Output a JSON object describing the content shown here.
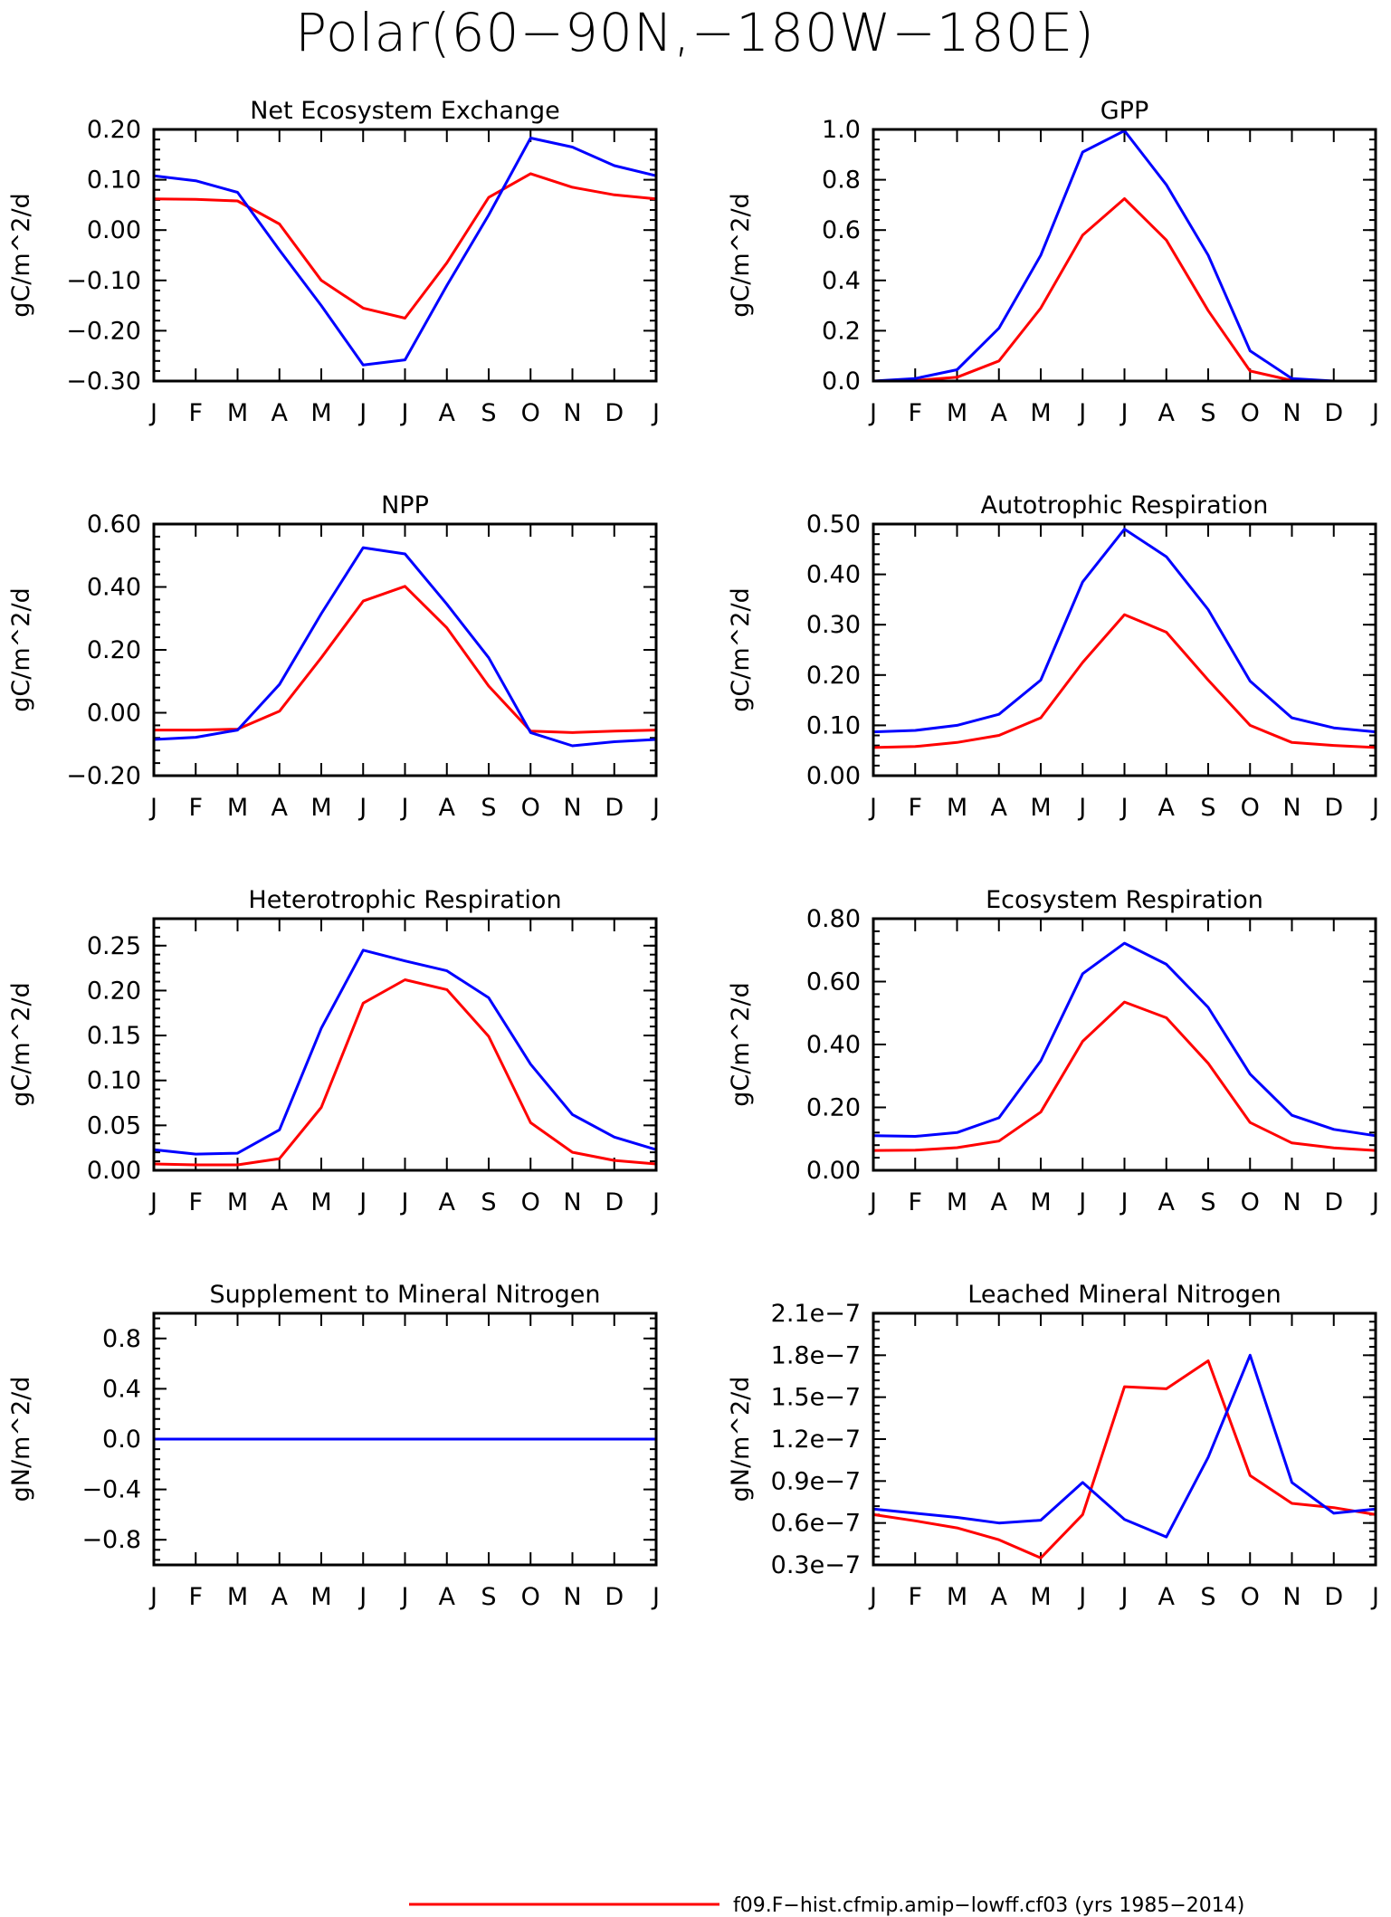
{
  "title": "Polar(60−90N,−180W−180E)",
  "colors": {
    "red": "#ff0000",
    "blue": "#0000ff"
  },
  "legend": {
    "label": "f09.F−hist.cfmip.amip−lowff.cf03 (yrs 1985−2014)",
    "color": "#ff0000"
  },
  "chart_data": [
    {
      "type": "line",
      "title": "Net Ecosystem Exchange",
      "ylabel": "gC/m^2/d",
      "categories": [
        "J",
        "F",
        "M",
        "A",
        "M",
        "J",
        "J",
        "A",
        "S",
        "O",
        "N",
        "D",
        "J"
      ],
      "ylim": [
        -0.3,
        0.2
      ],
      "yticks": [
        -0.3,
        -0.2,
        -0.1,
        0.0,
        0.1,
        0.2
      ],
      "ytick_labels": [
        "−0.30",
        "−0.20",
        "−0.10",
        "0.00",
        "0.10",
        "0.20"
      ],
      "series": [
        {
          "color": "#ff0000",
          "values": [
            0.062,
            0.061,
            0.058,
            0.012,
            -0.1,
            -0.155,
            -0.175,
            -0.065,
            0.065,
            0.112,
            0.085,
            0.07,
            0.062
          ]
        },
        {
          "color": "#0000ff",
          "values": [
            0.108,
            0.098,
            0.075,
            -0.04,
            -0.15,
            -0.268,
            -0.258,
            -0.11,
            0.03,
            0.183,
            0.165,
            0.128,
            0.108
          ]
        }
      ]
    },
    {
      "type": "line",
      "title": "GPP",
      "ylabel": "gC/m^2/d",
      "categories": [
        "J",
        "F",
        "M",
        "A",
        "M",
        "J",
        "J",
        "A",
        "S",
        "O",
        "N",
        "D",
        "J"
      ],
      "ylim": [
        0.0,
        1.0
      ],
      "yticks": [
        0.0,
        0.2,
        0.4,
        0.6,
        0.8,
        1.0
      ],
      "ytick_labels": [
        "0.0",
        "0.2",
        "0.4",
        "0.6",
        "0.8",
        "1.0"
      ],
      "series": [
        {
          "color": "#ff0000",
          "values": [
            0.0,
            0.002,
            0.015,
            0.08,
            0.29,
            0.58,
            0.725,
            0.56,
            0.28,
            0.04,
            0.002,
            0.0,
            0.0
          ]
        },
        {
          "color": "#0000ff",
          "values": [
            0.0,
            0.01,
            0.045,
            0.21,
            0.5,
            0.91,
            0.995,
            0.78,
            0.5,
            0.12,
            0.01,
            0.0,
            0.0
          ]
        }
      ]
    },
    {
      "type": "line",
      "title": "NPP",
      "ylabel": "gC/m^2/d",
      "categories": [
        "J",
        "F",
        "M",
        "A",
        "M",
        "J",
        "J",
        "A",
        "S",
        "O",
        "N",
        "D",
        "J"
      ],
      "ylim": [
        -0.2,
        0.6
      ],
      "yticks": [
        -0.2,
        0.0,
        0.2,
        0.4,
        0.6
      ],
      "ytick_labels": [
        "−0.20",
        "0.00",
        "0.20",
        "0.40",
        "0.60"
      ],
      "series": [
        {
          "color": "#ff0000",
          "values": [
            -0.055,
            -0.055,
            -0.052,
            0.005,
            0.175,
            0.355,
            0.402,
            0.27,
            0.085,
            -0.058,
            -0.063,
            -0.058,
            -0.055
          ]
        },
        {
          "color": "#0000ff",
          "values": [
            -0.085,
            -0.078,
            -0.055,
            0.09,
            0.315,
            0.525,
            0.505,
            0.345,
            0.175,
            -0.063,
            -0.105,
            -0.092,
            -0.085
          ]
        }
      ]
    },
    {
      "type": "line",
      "title": "Autotrophic Respiration",
      "ylabel": "gC/m^2/d",
      "categories": [
        "J",
        "F",
        "M",
        "A",
        "M",
        "J",
        "J",
        "A",
        "S",
        "O",
        "N",
        "D",
        "J"
      ],
      "ylim": [
        0.0,
        0.5
      ],
      "yticks": [
        0.0,
        0.1,
        0.2,
        0.3,
        0.4,
        0.5
      ],
      "ytick_labels": [
        "0.00",
        "0.10",
        "0.20",
        "0.30",
        "0.40",
        "0.50"
      ],
      "series": [
        {
          "color": "#ff0000",
          "values": [
            0.056,
            0.058,
            0.066,
            0.08,
            0.115,
            0.225,
            0.32,
            0.285,
            0.19,
            0.1,
            0.066,
            0.06,
            0.056
          ]
        },
        {
          "color": "#0000ff",
          "values": [
            0.087,
            0.09,
            0.1,
            0.122,
            0.19,
            0.385,
            0.49,
            0.435,
            0.33,
            0.188,
            0.115,
            0.095,
            0.087
          ]
        }
      ]
    },
    {
      "type": "line",
      "title": "Heterotrophic Respiration",
      "ylabel": "gC/m^2/d",
      "categories": [
        "J",
        "F",
        "M",
        "A",
        "M",
        "J",
        "J",
        "A",
        "S",
        "O",
        "N",
        "D",
        "J"
      ],
      "ylim": [
        0.0,
        0.28
      ],
      "yticks": [
        0.0,
        0.05,
        0.1,
        0.15,
        0.2,
        0.25
      ],
      "ytick_labels": [
        "0.00",
        "0.05",
        "0.10",
        "0.15",
        "0.20",
        "0.25"
      ],
      "series": [
        {
          "color": "#ff0000",
          "values": [
            0.007,
            0.006,
            0.006,
            0.013,
            0.07,
            0.186,
            0.212,
            0.201,
            0.149,
            0.053,
            0.02,
            0.011,
            0.007
          ]
        },
        {
          "color": "#0000ff",
          "values": [
            0.023,
            0.018,
            0.019,
            0.045,
            0.158,
            0.245,
            0.233,
            0.222,
            0.192,
            0.118,
            0.062,
            0.037,
            0.023
          ]
        }
      ]
    },
    {
      "type": "line",
      "title": "Ecosystem Respiration",
      "ylabel": "gC/m^2/d",
      "categories": [
        "J",
        "F",
        "M",
        "A",
        "M",
        "J",
        "J",
        "A",
        "S",
        "O",
        "N",
        "D",
        "J"
      ],
      "ylim": [
        0.0,
        0.8
      ],
      "yticks": [
        0.0,
        0.2,
        0.4,
        0.6,
        0.8
      ],
      "ytick_labels": [
        "0.00",
        "0.20",
        "0.40",
        "0.60",
        "0.80"
      ],
      "series": [
        {
          "color": "#ff0000",
          "values": [
            0.063,
            0.064,
            0.072,
            0.093,
            0.185,
            0.41,
            0.535,
            0.485,
            0.34,
            0.152,
            0.087,
            0.071,
            0.063
          ]
        },
        {
          "color": "#0000ff",
          "values": [
            0.11,
            0.108,
            0.12,
            0.167,
            0.348,
            0.625,
            0.722,
            0.655,
            0.518,
            0.306,
            0.175,
            0.13,
            0.11
          ]
        }
      ]
    },
    {
      "type": "line",
      "title": "Supplement to Mineral Nitrogen",
      "ylabel": "gN/m^2/d",
      "categories": [
        "J",
        "F",
        "M",
        "A",
        "M",
        "J",
        "J",
        "A",
        "S",
        "O",
        "N",
        "D",
        "J"
      ],
      "ylim": [
        -1.0,
        1.0
      ],
      "yticks": [
        -0.8,
        -0.4,
        0.0,
        0.4,
        0.8
      ],
      "ytick_labels": [
        "−0.8",
        "−0.4",
        "0.0",
        "0.4",
        "0.8"
      ],
      "series": [
        {
          "color": "#ff0000",
          "values": [
            0,
            0,
            0,
            0,
            0,
            0,
            0,
            0,
            0,
            0,
            0,
            0,
            0
          ]
        },
        {
          "color": "#0000ff",
          "values": [
            0,
            0,
            0,
            0,
            0,
            0,
            0,
            0,
            0,
            0,
            0,
            0,
            0
          ]
        }
      ]
    },
    {
      "type": "line",
      "title": "Leached Mineral Nitrogen",
      "ylabel": "gN/m^2/d",
      "categories": [
        "J",
        "F",
        "M",
        "A",
        "M",
        "J",
        "J",
        "A",
        "S",
        "O",
        "N",
        "D",
        "J"
      ],
      "ylim": [
        3e-08,
        2.1e-07
      ],
      "yticks": [
        3e-08,
        6e-08,
        9e-08,
        1.2e-07,
        1.5e-07,
        1.8e-07,
        2.1e-07
      ],
      "ytick_labels": [
        "0.3e−7",
        "0.6e−7",
        "0.9e−7",
        "1.2e−7",
        "1.5e−7",
        "1.8e−7",
        "2.1e−7"
      ],
      "series": [
        {
          "color": "#ff0000",
          "values": [
            6.6e-08,
            6.15e-08,
            5.65e-08,
            4.8e-08,
            3.5e-08,
            6.6e-08,
            1.575e-07,
            1.56e-07,
            1.76e-07,
            9.4e-08,
            7.4e-08,
            7.1e-08,
            6.6e-08
          ]
        },
        {
          "color": "#0000ff",
          "values": [
            7e-08,
            6.7e-08,
            6.4e-08,
            6e-08,
            6.2e-08,
            8.9e-08,
            6.25e-08,
            5e-08,
            1.07e-07,
            1.8e-07,
            8.9e-08,
            6.7e-08,
            7e-08
          ]
        }
      ]
    }
  ]
}
